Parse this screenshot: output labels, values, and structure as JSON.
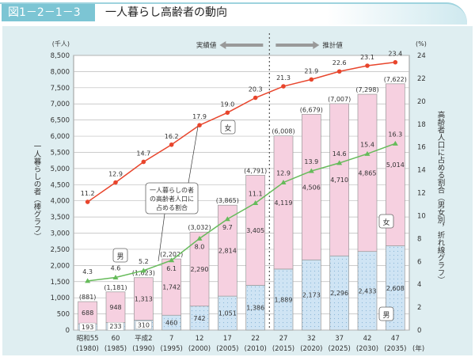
{
  "header": {
    "figure_number": "図1－2－1－3",
    "title": "一人暮らし高齢者の動向"
  },
  "chart_data": {
    "type": "bar",
    "title": "一人暮らし高齢者の動向",
    "categories": [
      "昭和55",
      "60",
      "平成2",
      "7",
      "12",
      "17",
      "22",
      "27",
      "32",
      "37",
      "42",
      "47"
    ],
    "categories_year": [
      "(1980)",
      "(1985)",
      "(1990)",
      "(1995)",
      "(2000)",
      "(2005)",
      "(2010)",
      "(2015)",
      "(2020)",
      "(2025)",
      "(2030)",
      "(2035)"
    ],
    "x_unit": "(年)",
    "y_left": {
      "label": "一人暮らしの者（棒グラフ）",
      "unit": "(千人)",
      "range": [
        0,
        8500
      ],
      "ticks": [
        "0",
        "500",
        "1,000",
        "1,500",
        "2,000",
        "2,500",
        "3,000",
        "3,500",
        "4,000",
        "4,500",
        "5,000",
        "5,500",
        "6,000",
        "6,500",
        "7,000",
        "7,500",
        "8,000",
        "8,500"
      ]
    },
    "y_right": {
      "label": "高齢者人口に占める割合（男女別，折れ線グラフ）",
      "unit": "(%)",
      "range": [
        0,
        24
      ],
      "ticks": [
        "0",
        "2",
        "4",
        "6",
        "8",
        "10",
        "12",
        "14",
        "16",
        "18",
        "20",
        "22",
        "24"
      ]
    },
    "bar_series": [
      {
        "name": "男",
        "color": "#cfe4f4",
        "values": [
          193,
          233,
          310,
          460,
          742,
          1051,
          1386,
          1889,
          2173,
          2296,
          2433,
          2608
        ],
        "labels": [
          "193",
          "233",
          "310",
          "460",
          "742",
          "1,051",
          "1,386",
          "1,889",
          "2,173",
          "2,296",
          "2,433",
          "2,608"
        ]
      },
      {
        "name": "女",
        "color": "#f6d0e0",
        "values": [
          688,
          948,
          1313,
          1742,
          2290,
          2814,
          3405,
          4119,
          4506,
          4710,
          4865,
          5014
        ],
        "labels": [
          "688",
          "948",
          "1,313",
          "1,742",
          "2,290",
          "2,814",
          "3,405",
          "4,119",
          "4,506",
          "4,710",
          "4,865",
          "5,014"
        ]
      }
    ],
    "totals": [
      "(881)",
      "(1,181)",
      "(1,623)",
      "(2,202)",
      "(3,032)",
      "(3,865)",
      "(4,791)",
      "(6,008)",
      "(6,679)",
      "(7,007)",
      "(7,298)",
      "(7,622)"
    ],
    "line_series": [
      {
        "name": "女",
        "color": "#e8452c",
        "values": [
          11.2,
          12.9,
          14.7,
          16.2,
          17.9,
          19.0,
          20.3,
          21.3,
          21.9,
          22.6,
          23.1,
          23.4
        ],
        "labels": [
          "11.2",
          "12.9",
          "14.7",
          "16.2",
          "17.9",
          "19.0",
          "20.3",
          "21.3",
          "21.9",
          "22.6",
          "23.1",
          "23.4"
        ]
      },
      {
        "name": "男",
        "color": "#66bb5a",
        "values": [
          4.3,
          4.6,
          5.2,
          6.1,
          8.0,
          9.7,
          11.1,
          12.9,
          13.9,
          14.6,
          15.4,
          16.3
        ],
        "labels": [
          "4.3",
          "4.6",
          "5.2",
          "6.1",
          "8.0",
          "9.7",
          "11.1",
          "12.9",
          "13.9",
          "14.6",
          "15.4",
          "16.3"
        ]
      }
    ],
    "annotations": {
      "actual": "実績値",
      "projected": "推計値",
      "callout": [
        "一人暮らしの者",
        "の高齢者人口に",
        "占める割合"
      ],
      "female_tag": "女",
      "male_tag": "男"
    },
    "grid": true
  }
}
